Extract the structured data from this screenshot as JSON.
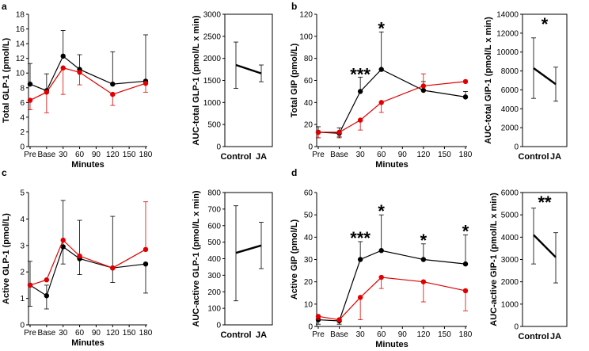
{
  "chart_data": [
    {
      "panel": "a",
      "type": "line",
      "ylabel": "Total GLP-1 (pmol/L)",
      "xlabel": "Minutes",
      "categories": [
        "Pre",
        "Base",
        "30",
        "60",
        "90",
        "120",
        "150",
        "180"
      ],
      "x": [
        -30,
        0,
        30,
        60,
        120,
        180
      ],
      "ylim": [
        0,
        18
      ],
      "yticks": [
        0,
        2,
        4,
        6,
        8,
        10,
        12,
        14,
        16,
        18
      ],
      "series": [
        {
          "name": "Control",
          "color": "#000000",
          "values": [
            8.5,
            7.6,
            12.3,
            10.5,
            8.5,
            8.9
          ],
          "err_upper": [
            11.3,
            9.9,
            15.8,
            12.5,
            12.9,
            15.2
          ],
          "err_lower": [
            null,
            null,
            null,
            null,
            null,
            null
          ]
        },
        {
          "name": "JA",
          "color": "#e00000",
          "values": [
            6.3,
            7.4,
            10.7,
            10.1,
            7.1,
            8.6
          ],
          "err_upper": [
            null,
            null,
            null,
            null,
            null,
            null
          ],
          "err_lower": [
            5.0,
            4.6,
            7.1,
            8.4,
            5.6,
            7.4
          ]
        }
      ],
      "annotations": [],
      "auc": {
        "ylabel": "AUC-total GLP-1 (pmol/L x min)",
        "ylim": [
          0,
          3000
        ],
        "yticks": [
          0,
          500,
          1000,
          1500,
          2000,
          2500,
          3000
        ],
        "categories": [
          "Control",
          "JA"
        ],
        "values": [
          1850,
          1660
        ],
        "err_upper": [
          2370,
          1850
        ],
        "err_lower": [
          1320,
          1470
        ],
        "annotation": ""
      }
    },
    {
      "panel": "b",
      "type": "line",
      "ylabel": "Total GIP (pmol/L)",
      "xlabel": "Minutes",
      "categories": [
        "Pre",
        "Base",
        "30",
        "60",
        "90",
        "120",
        "150",
        "180"
      ],
      "x": [
        -30,
        0,
        30,
        60,
        120,
        180
      ],
      "ylim": [
        0,
        120
      ],
      "yticks": [
        0,
        20,
        40,
        60,
        80,
        100,
        120
      ],
      "series": [
        {
          "name": "Control",
          "color": "#000000",
          "values": [
            13,
            12,
            50,
            70,
            51,
            45
          ],
          "err_upper": [
            18,
            17,
            63,
            104,
            59,
            50
          ],
          "err_lower": [
            8,
            8,
            null,
            null,
            null,
            null
          ]
        },
        {
          "name": "JA",
          "color": "#e00000",
          "values": [
            13,
            13,
            24,
            40,
            55,
            59
          ],
          "err_upper": [
            null,
            null,
            null,
            null,
            66,
            null
          ],
          "err_lower": [
            8,
            9,
            15,
            31,
            null,
            null
          ]
        }
      ],
      "annotations": [
        {
          "text": "***",
          "x": 30,
          "y": 62
        },
        {
          "text": "*",
          "x": 60,
          "y": 104
        }
      ],
      "auc": {
        "ylabel": "AUC-total GIP-1 (pmol/L x min)",
        "ylim": [
          0,
          14000
        ],
        "yticks": [
          0,
          2000,
          4000,
          6000,
          8000,
          10000,
          12000,
          14000
        ],
        "categories": [
          "Control",
          "JA"
        ],
        "values": [
          8300,
          6600
        ],
        "err_upper": [
          11500,
          8400
        ],
        "err_lower": [
          5100,
          4800
        ],
        "annotation": "*"
      }
    },
    {
      "panel": "c",
      "type": "line",
      "ylabel": "Active GLP-1 (pmol/L)",
      "xlabel": "Minutes",
      "categories": [
        "Pre",
        "Base",
        "30",
        "60",
        "90",
        "120",
        "150",
        "180"
      ],
      "x": [
        -30,
        0,
        30,
        60,
        120,
        180
      ],
      "ylim": [
        0,
        5
      ],
      "yticks": [
        0,
        1,
        2,
        3,
        4,
        5
      ],
      "series": [
        {
          "name": "Control",
          "color": "#000000",
          "values": [
            1.5,
            1.1,
            2.95,
            2.5,
            2.15,
            2.3
          ],
          "err_upper": [
            2.4,
            1.5,
            4.7,
            3.95,
            4.1,
            null
          ],
          "err_lower": [
            0.7,
            0.6,
            2.3,
            1.9,
            1.6,
            1.2
          ]
        },
        {
          "name": "JA",
          "color": "#e00000",
          "values": [
            1.5,
            1.7,
            3.2,
            2.6,
            2.15,
            2.85
          ],
          "err_upper": [
            null,
            null,
            null,
            null,
            null,
            4.65
          ],
          "err_lower": [
            null,
            null,
            null,
            null,
            null,
            null
          ]
        }
      ],
      "annotations": [],
      "auc": {
        "ylabel": "AUC-active GLP-1 (pmol/L x min)",
        "ylim": [
          0,
          800
        ],
        "yticks": [
          0,
          100,
          200,
          300,
          400,
          500,
          600,
          700,
          800
        ],
        "categories": [
          "Control",
          "JA"
        ],
        "values": [
          435,
          480
        ],
        "err_upper": [
          720,
          620
        ],
        "err_lower": [
          145,
          340
        ],
        "annotation": ""
      }
    },
    {
      "panel": "d",
      "type": "line",
      "ylabel": "Active GIP (pmol/L)",
      "xlabel": "Minutes",
      "categories": [
        "Pre",
        "Base",
        "30",
        "60",
        "90",
        "120",
        "150",
        "180"
      ],
      "x": [
        -30,
        0,
        30,
        60,
        120,
        180
      ],
      "ylim": [
        0,
        60
      ],
      "yticks": [
        0,
        10,
        20,
        30,
        40,
        50,
        60
      ],
      "series": [
        {
          "name": "Control",
          "color": "#000000",
          "values": [
            3,
            2.5,
            30,
            34,
            30,
            28
          ],
          "err_upper": [
            null,
            null,
            38,
            50,
            37,
            41
          ],
          "err_lower": [
            1,
            1,
            null,
            null,
            null,
            null
          ]
        },
        {
          "name": "JA",
          "color": "#e00000",
          "values": [
            4.5,
            3,
            13,
            22,
            20,
            16
          ],
          "err_upper": [
            null,
            null,
            null,
            null,
            null,
            null
          ],
          "err_lower": [
            3,
            2,
            3,
            17,
            11,
            7
          ]
        }
      ],
      "annotations": [
        {
          "text": "***",
          "x": 30,
          "y": 38
        },
        {
          "text": "*",
          "x": 60,
          "y": 50
        },
        {
          "text": "*",
          "x": 120,
          "y": 37
        },
        {
          "text": "*",
          "x": 180,
          "y": 41
        }
      ],
      "auc": {
        "ylabel": "AUC-active GIP-1 (pmol/L x min)",
        "ylim": [
          0,
          6000
        ],
        "yticks": [
          0,
          1000,
          2000,
          3000,
          4000,
          5000,
          6000
        ],
        "categories": [
          "Control",
          "JA"
        ],
        "values": [
          4100,
          3100
        ],
        "err_upper": [
          5300,
          4200
        ],
        "err_lower": [
          2800,
          1950
        ],
        "annotation": "**"
      }
    }
  ]
}
